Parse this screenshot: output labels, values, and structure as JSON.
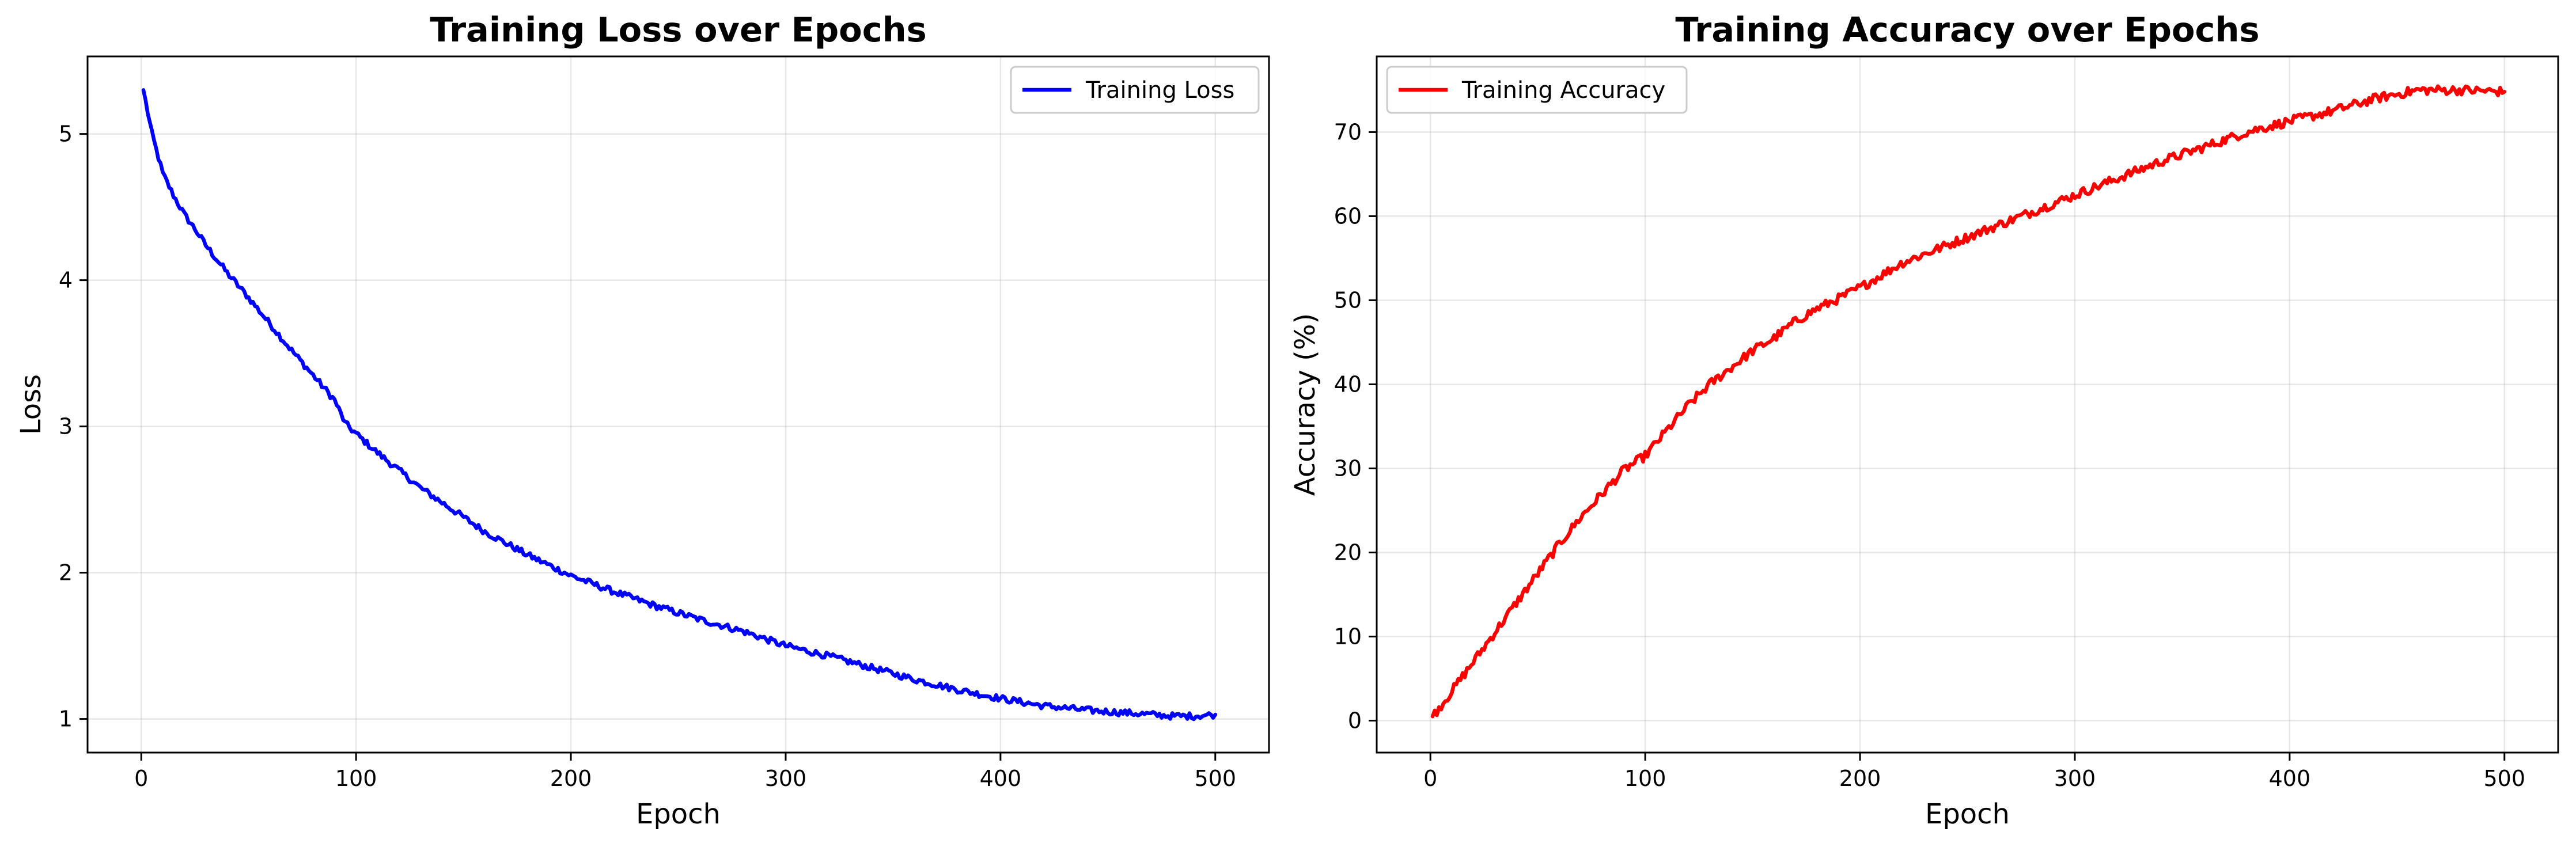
{
  "figure": {
    "background": "#ffffff"
  },
  "chart_data": [
    {
      "type": "line",
      "title": "Training Loss over Epochs",
      "xlabel": "Epoch",
      "ylabel": "Loss",
      "xlim": [
        -25,
        525
      ],
      "ylim": [
        0.77,
        5.53
      ],
      "xticks": [
        0,
        100,
        200,
        300,
        400,
        500
      ],
      "yticks": [
        1,
        2,
        3,
        4,
        5
      ],
      "grid": true,
      "legend_position": "top-right",
      "series": [
        {
          "name": "Training Loss",
          "color": "#0000ff",
          "x": [
            1,
            5,
            10,
            15,
            20,
            25,
            30,
            40,
            50,
            60,
            70,
            80,
            90,
            95,
            100,
            110,
            120,
            130,
            140,
            150,
            160,
            170,
            180,
            190,
            200,
            220,
            240,
            260,
            280,
            300,
            320,
            340,
            360,
            380,
            400,
            420,
            440,
            460,
            480,
            490,
            500
          ],
          "y": [
            5.3,
            5.0,
            4.73,
            4.58,
            4.45,
            4.35,
            4.24,
            4.05,
            3.88,
            3.7,
            3.52,
            3.35,
            3.18,
            3.02,
            2.95,
            2.82,
            2.7,
            2.58,
            2.48,
            2.38,
            2.28,
            2.2,
            2.12,
            2.05,
            1.98,
            1.87,
            1.77,
            1.68,
            1.6,
            1.5,
            1.43,
            1.35,
            1.27,
            1.2,
            1.14,
            1.09,
            1.06,
            1.04,
            1.02,
            1.02,
            1.03
          ]
        }
      ]
    },
    {
      "type": "line",
      "title": "Training Accuracy over Epochs",
      "xlabel": "Epoch",
      "ylabel": "Accuracy (%)",
      "xlim": [
        -25,
        525
      ],
      "ylim": [
        -3.8,
        79.0
      ],
      "xticks": [
        0,
        100,
        200,
        300,
        400,
        500
      ],
      "yticks": [
        0,
        10,
        20,
        30,
        40,
        50,
        60,
        70
      ],
      "grid": true,
      "legend_position": "top-left",
      "series": [
        {
          "name": "Training Accuracy",
          "color": "#ff0000",
          "x": [
            1,
            10,
            20,
            30,
            40,
            50,
            60,
            70,
            80,
            90,
            100,
            110,
            120,
            130,
            140,
            150,
            160,
            170,
            180,
            190,
            200,
            220,
            240,
            260,
            280,
            300,
            320,
            340,
            360,
            380,
            400,
            420,
            440,
            450,
            460,
            480,
            500
          ],
          "y": [
            0.5,
            3.5,
            7.0,
            10.5,
            14.0,
            17.5,
            21.0,
            24.2,
            27.0,
            29.8,
            31.5,
            34.5,
            37.5,
            40.0,
            42.0,
            44.0,
            45.5,
            47.5,
            49.0,
            50.2,
            51.5,
            54.5,
            56.5,
            58.5,
            60.5,
            62.5,
            64.5,
            66.5,
            68.2,
            70.0,
            71.3,
            72.5,
            74.0,
            74.5,
            75.0,
            75.0,
            74.8
          ]
        }
      ]
    }
  ]
}
